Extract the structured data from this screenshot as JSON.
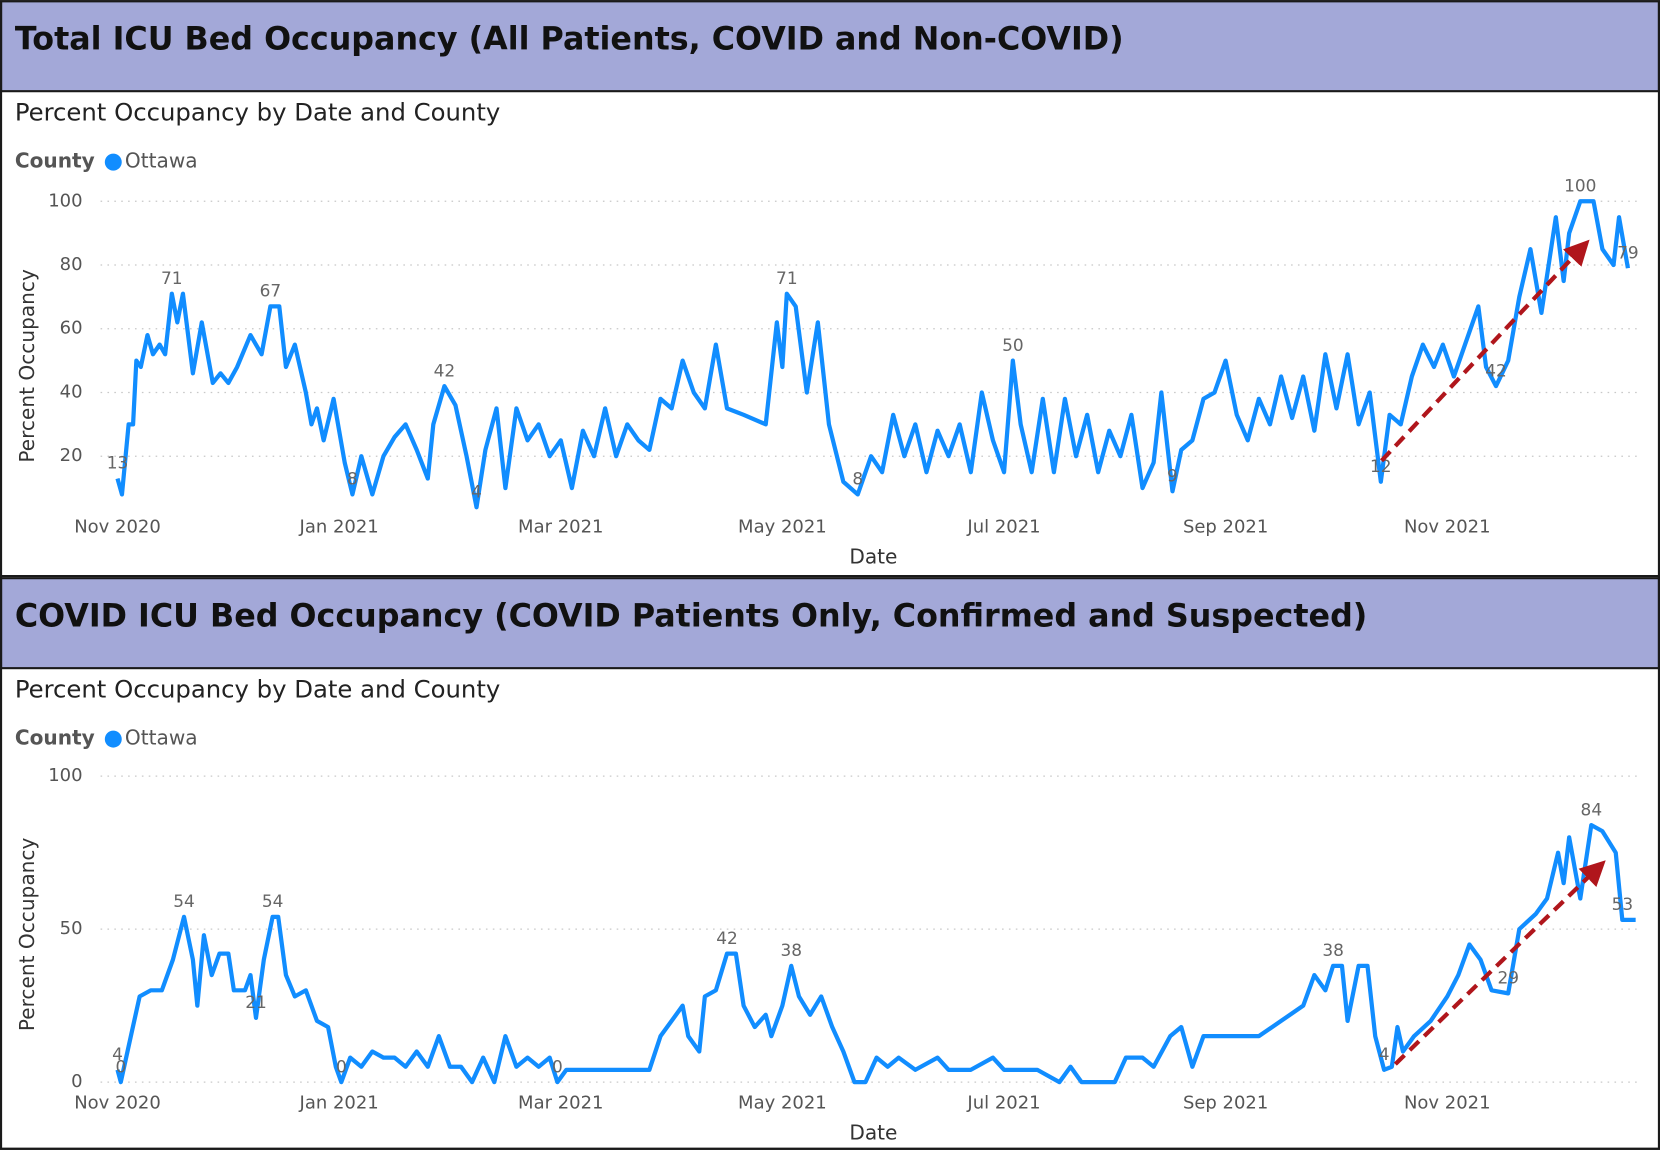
{
  "chart_data": [
    {
      "type": "line",
      "header": "Total ICU Bed Occupancy (All Patients, COVID and Non-COVID)",
      "title": "Percent Occupancy by Date and County",
      "legend_title": "County",
      "x_label": "Date",
      "y_label": "Percent Occupancy",
      "xlim": [
        0,
        13.7
      ],
      "xticks": [
        {
          "value": 0,
          "label": "Nov 2020"
        },
        {
          "value": 2,
          "label": "Jan 2021"
        },
        {
          "value": 4,
          "label": "Mar 2021"
        },
        {
          "value": 6,
          "label": "May 2021"
        },
        {
          "value": 8,
          "label": "Jul 2021"
        },
        {
          "value": 10,
          "label": "Sep 2021"
        },
        {
          "value": 12,
          "label": "Nov 2021"
        }
      ],
      "ylim": [
        0,
        100
      ],
      "yticks": [
        20,
        40,
        60,
        80,
        100
      ],
      "grid": true,
      "series": [
        {
          "name": "Ottawa",
          "color": "#118dff",
          "x": [
            0,
            0.04,
            0.1,
            0.14,
            0.17,
            0.21,
            0.27,
            0.32,
            0.38,
            0.43,
            0.49,
            0.54,
            0.59,
            0.68,
            0.76,
            0.86,
            0.93,
            1.0,
            1.08,
            1.2,
            1.3,
            1.38,
            1.46,
            1.52,
            1.6,
            1.7,
            1.75,
            1.8,
            1.86,
            1.95,
            2.05,
            2.12,
            2.2,
            2.3,
            2.4,
            2.5,
            2.6,
            2.7,
            2.8,
            2.85,
            2.95,
            3.05,
            3.15,
            3.24,
            3.32,
            3.42,
            3.5,
            3.6,
            3.7,
            3.8,
            3.9,
            4.0,
            4.1,
            4.2,
            4.3,
            4.4,
            4.5,
            4.6,
            4.7,
            4.8,
            4.9,
            5.0,
            5.1,
            5.2,
            5.3,
            5.4,
            5.5,
            5.65,
            5.85,
            5.95,
            6.0,
            6.04,
            6.12,
            6.22,
            6.32,
            6.42,
            6.55,
            6.68,
            6.8,
            6.9,
            7.0,
            7.1,
            7.2,
            7.3,
            7.4,
            7.5,
            7.6,
            7.7,
            7.8,
            7.9,
            8.0,
            8.08,
            8.15,
            8.25,
            8.35,
            8.45,
            8.55,
            8.65,
            8.75,
            8.85,
            8.95,
            9.05,
            9.15,
            9.25,
            9.35,
            9.42,
            9.52,
            9.6,
            9.7,
            9.8,
            9.9,
            10.0,
            10.1,
            10.2,
            10.3,
            10.4,
            10.5,
            10.6,
            10.7,
            10.8,
            10.9,
            11.0,
            11.1,
            11.2,
            11.3,
            11.4,
            11.48,
            11.58,
            11.68,
            11.78,
            11.88,
            11.96,
            12.06,
            12.16,
            12.28,
            12.35,
            12.44,
            12.55,
            12.65,
            12.75,
            12.85,
            12.98,
            13.05,
            13.1,
            13.2,
            13.32,
            13.4,
            13.5,
            13.55,
            13.63
          ],
          "values": [
            13,
            8,
            30,
            30,
            50,
            48,
            58,
            52,
            55,
            52,
            71,
            62,
            71,
            46,
            62,
            43,
            46,
            43,
            48,
            58,
            52,
            67,
            67,
            48,
            55,
            40,
            30,
            35,
            25,
            38,
            18,
            8,
            20,
            8,
            20,
            26,
            30,
            22,
            13,
            30,
            42,
            36,
            20,
            4,
            22,
            35,
            10,
            35,
            25,
            30,
            20,
            25,
            10,
            28,
            20,
            35,
            20,
            30,
            25,
            22,
            38,
            35,
            50,
            40,
            35,
            55,
            35,
            33,
            30,
            62,
            48,
            71,
            67,
            40,
            62,
            30,
            12,
            8,
            20,
            15,
            33,
            20,
            30,
            15,
            28,
            20,
            30,
            15,
            40,
            25,
            15,
            50,
            30,
            15,
            38,
            15,
            38,
            20,
            33,
            15,
            28,
            20,
            33,
            10,
            18,
            40,
            9,
            22,
            25,
            38,
            40,
            50,
            33,
            25,
            38,
            30,
            45,
            32,
            45,
            28,
            52,
            35,
            52,
            30,
            40,
            12,
            33,
            30,
            45,
            55,
            48,
            55,
            45,
            55,
            67,
            48,
            42,
            50,
            70,
            85,
            65,
            95,
            75,
            90,
            100,
            100,
            85,
            80,
            95,
            79
          ]
        }
      ],
      "data_labels": [
        {
          "x": 0,
          "value": 13
        },
        {
          "x": 0.49,
          "value": 71
        },
        {
          "x": 1.38,
          "value": 67
        },
        {
          "x": 2.12,
          "value": 8
        },
        {
          "x": 2.95,
          "value": 42
        },
        {
          "x": 3.24,
          "value": 4
        },
        {
          "x": 6.04,
          "value": 71
        },
        {
          "x": 6.68,
          "value": 8
        },
        {
          "x": 8.08,
          "value": 50
        },
        {
          "x": 9.52,
          "value": 9
        },
        {
          "x": 11.4,
          "value": 12
        },
        {
          "x": 12.44,
          "value": 42
        },
        {
          "x": 13.2,
          "value": 100
        },
        {
          "x": 13.63,
          "value": 79
        }
      ]
    },
    {
      "type": "line",
      "header": "COVID ICU Bed Occupancy (COVID Patients Only, Confirmed and Suspected)",
      "title": "Percent Occupancy by Date and County",
      "legend_title": "County",
      "x_label": "Date",
      "y_label": "Percent Occupancy",
      "xlim": [
        0,
        13.7
      ],
      "xticks": [
        {
          "value": 0,
          "label": "Nov 2020"
        },
        {
          "value": 2,
          "label": "Jan 2021"
        },
        {
          "value": 4,
          "label": "Mar 2021"
        },
        {
          "value": 6,
          "label": "May 2021"
        },
        {
          "value": 8,
          "label": "Jul 2021"
        },
        {
          "value": 10,
          "label": "Sep 2021"
        },
        {
          "value": 12,
          "label": "Nov 2021"
        }
      ],
      "ylim": [
        0,
        100
      ],
      "yticks": [
        0,
        50,
        100
      ],
      "grid": true,
      "series": [
        {
          "name": "Ottawa",
          "color": "#118dff",
          "x": [
            0,
            0.03,
            0.12,
            0.2,
            0.3,
            0.4,
            0.5,
            0.6,
            0.68,
            0.72,
            0.78,
            0.85,
            0.92,
            1.0,
            1.05,
            1.15,
            1.2,
            1.25,
            1.32,
            1.4,
            1.45,
            1.52,
            1.6,
            1.7,
            1.8,
            1.9,
            1.97,
            2.02,
            2.1,
            2.2,
            2.3,
            2.4,
            2.5,
            2.6,
            2.7,
            2.8,
            2.9,
            3.0,
            3.1,
            3.2,
            3.3,
            3.4,
            3.5,
            3.6,
            3.7,
            3.8,
            3.9,
            3.97,
            4.05,
            4.3,
            4.6,
            4.8,
            4.9,
            5.0,
            5.1,
            5.15,
            5.25,
            5.3,
            5.4,
            5.5,
            5.58,
            5.65,
            5.75,
            5.85,
            5.9,
            6.0,
            6.08,
            6.15,
            6.25,
            6.35,
            6.45,
            6.55,
            6.65,
            6.75,
            6.85,
            6.95,
            7.05,
            7.2,
            7.4,
            7.5,
            7.7,
            7.9,
            8.0,
            8.3,
            8.5,
            8.6,
            8.7,
            9.0,
            9.1,
            9.25,
            9.35,
            9.5,
            9.6,
            9.7,
            9.8,
            9.95,
            10.1,
            10.3,
            10.5,
            10.7,
            10.8,
            10.9,
            10.97,
            11.05,
            11.1,
            11.2,
            11.28,
            11.35,
            11.43,
            11.5,
            11.55,
            11.6,
            11.7,
            11.85,
            12.0,
            12.1,
            12.2,
            12.3,
            12.4,
            12.55,
            12.65,
            12.8,
            12.9,
            13.0,
            13.05,
            13.1,
            13.2,
            13.3,
            13.4,
            13.52,
            13.58,
            13.7
          ],
          "values": [
            4,
            0,
            15,
            28,
            30,
            30,
            40,
            54,
            40,
            25,
            48,
            35,
            42,
            42,
            30,
            30,
            35,
            21,
            40,
            54,
            54,
            35,
            28,
            30,
            20,
            18,
            5,
            0,
            8,
            5,
            10,
            8,
            8,
            5,
            10,
            5,
            15,
            5,
            5,
            0,
            8,
            0,
            15,
            5,
            8,
            5,
            8,
            0,
            4,
            4,
            4,
            4,
            15,
            20,
            25,
            15,
            10,
            28,
            30,
            42,
            42,
            25,
            18,
            22,
            15,
            25,
            38,
            28,
            22,
            28,
            18,
            10,
            0,
            0,
            8,
            5,
            8,
            4,
            8,
            4,
            4,
            8,
            4,
            4,
            0,
            5,
            0,
            0,
            8,
            8,
            5,
            15,
            18,
            5,
            15,
            15,
            15,
            15,
            20,
            25,
            35,
            30,
            38,
            38,
            20,
            38,
            38,
            15,
            4,
            5,
            18,
            10,
            15,
            20,
            28,
            35,
            45,
            40,
            30,
            29,
            50,
            55,
            60,
            75,
            65,
            80,
            60,
            84,
            82,
            75,
            53,
            53
          ]
        }
      ],
      "data_labels": [
        {
          "x": 0,
          "value": 4
        },
        {
          "x": 0.03,
          "value": 0
        },
        {
          "x": 0.6,
          "value": 54
        },
        {
          "x": 1.25,
          "value": 21
        },
        {
          "x": 1.4,
          "value": 54
        },
        {
          "x": 2.02,
          "value": 0
        },
        {
          "x": 3.97,
          "value": 0
        },
        {
          "x": 5.5,
          "value": 42
        },
        {
          "x": 6.08,
          "value": 38
        },
        {
          "x": 10.97,
          "value": 38
        },
        {
          "x": 11.43,
          "value": 4
        },
        {
          "x": 12.55,
          "value": 29
        },
        {
          "x": 13.3,
          "value": 84
        },
        {
          "x": 13.58,
          "value": 53
        }
      ]
    }
  ]
}
